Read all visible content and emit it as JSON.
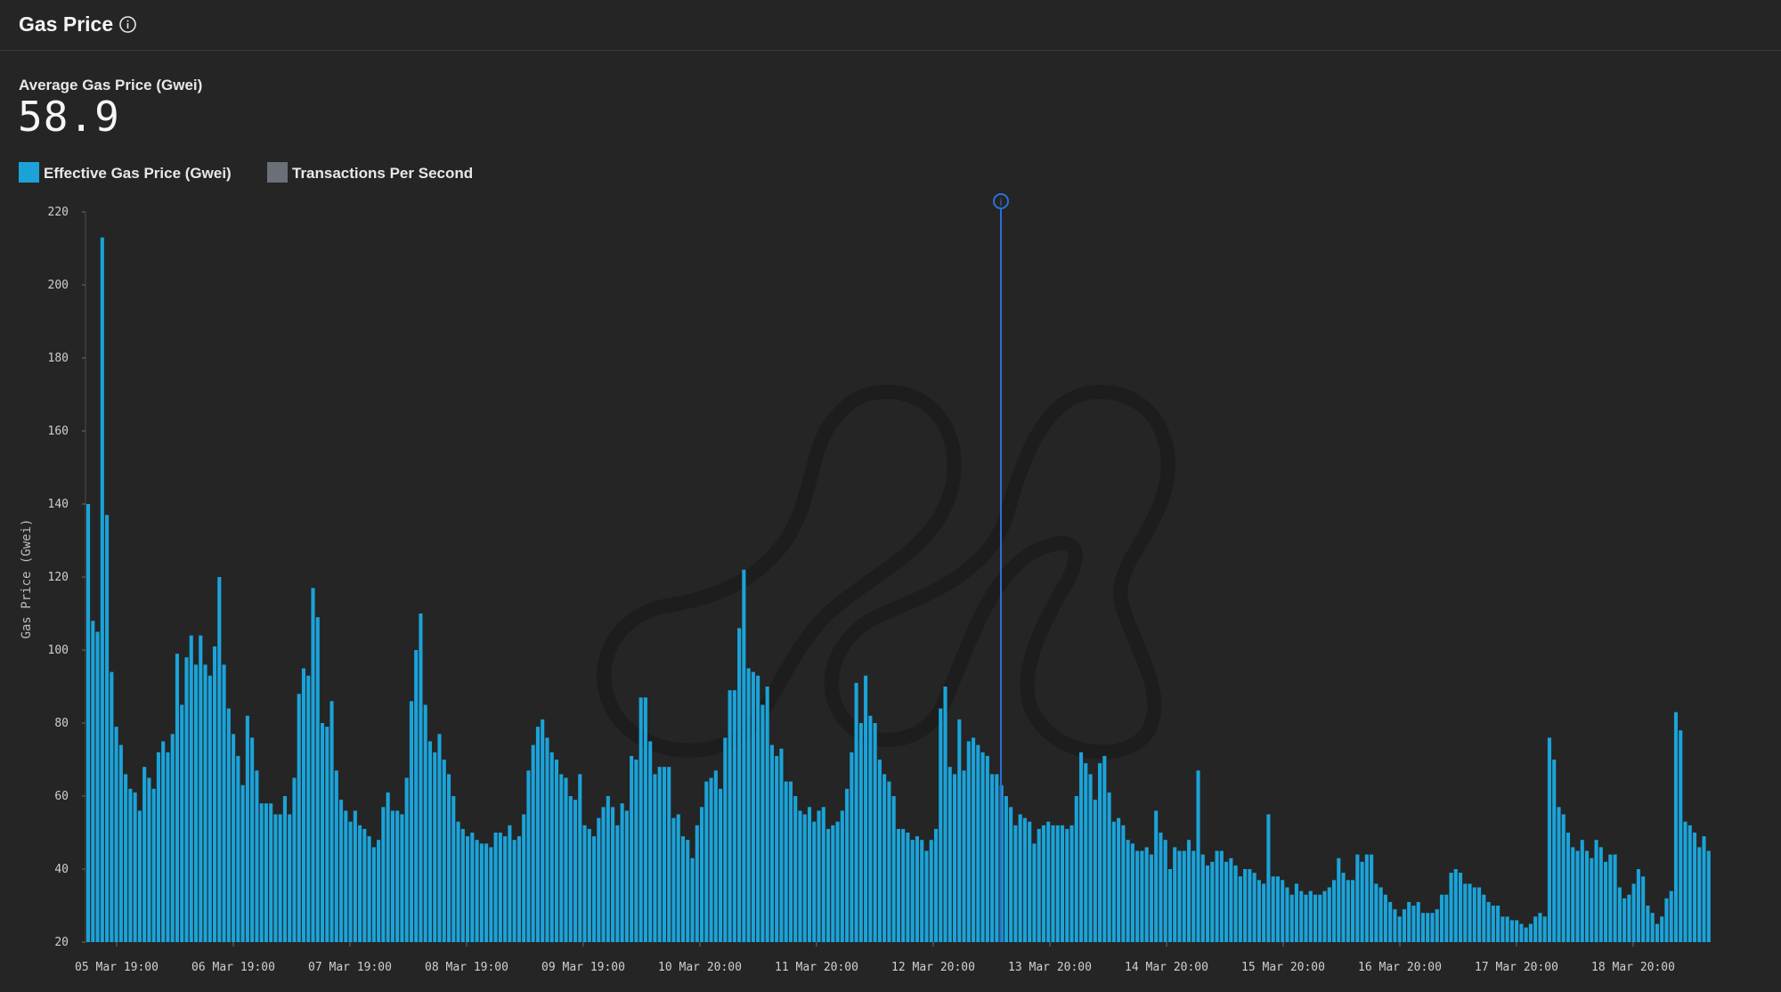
{
  "header": {
    "title": "Gas Price",
    "info_icon": "info-icon"
  },
  "metric": {
    "label": "Average Gas Price (Gwei)",
    "value": "58.9"
  },
  "legend": [
    {
      "label": "Effective Gas Price (Gwei)",
      "color": "#1ba3d9"
    },
    {
      "label": "Transactions Per Second",
      "color": "#6b6f78"
    }
  ],
  "colors": {
    "background": "#252525",
    "bar": "#1ba3d9",
    "marker": "#2b6fd6",
    "watermark": "#1e1e1e"
  },
  "chart_data": {
    "type": "bar",
    "title": "",
    "xlabel": "",
    "ylabel": "Gas Price (Gwei)",
    "ylim": [
      20,
      220
    ],
    "yticks": [
      20,
      40,
      60,
      80,
      100,
      120,
      140,
      160,
      180,
      200,
      220
    ],
    "xtick_labels": [
      "05 Mar 19:00",
      "06 Mar 19:00",
      "07 Mar 19:00",
      "08 Mar 19:00",
      "09 Mar 19:00",
      "10 Mar 20:00",
      "11 Mar 20:00",
      "12 Mar 20:00",
      "13 Mar 20:00",
      "14 Mar 20:00",
      "15 Mar 20:00",
      "16 Mar 20:00",
      "17 Mar 20:00",
      "18 Mar 20:00"
    ],
    "series": [
      {
        "name": "Effective Gas Price (Gwei)",
        "values": [
          140,
          108,
          105,
          213,
          137,
          94,
          79,
          74,
          66,
          62,
          61,
          56,
          68,
          65,
          62,
          72,
          75,
          72,
          77,
          99,
          85,
          98,
          104,
          96,
          104,
          96,
          93,
          101,
          120,
          96,
          84,
          77,
          71,
          63,
          82,
          76,
          67,
          58,
          58,
          58,
          55,
          55,
          60,
          55,
          65,
          88,
          95,
          93,
          117,
          109,
          80,
          79,
          86,
          67,
          59,
          56,
          53,
          56,
          52,
          51,
          49,
          46,
          48,
          57,
          61,
          56,
          56,
          55,
          65,
          86,
          100,
          110,
          85,
          75,
          72,
          77,
          70,
          66,
          60,
          53,
          51,
          49,
          50,
          48,
          47,
          47,
          46,
          50,
          50,
          49,
          52,
          48,
          49,
          55,
          67,
          74,
          79,
          81,
          76,
          72,
          70,
          66,
          65,
          60,
          59,
          66,
          52,
          51,
          49,
          54,
          57,
          60,
          57,
          52,
          58,
          56,
          71,
          70,
          87,
          87,
          75,
          66,
          68,
          68,
          68,
          54,
          55,
          49,
          48,
          43,
          52,
          57,
          64,
          65,
          67,
          62,
          76,
          89,
          89,
          106,
          122,
          95,
          94,
          93,
          85,
          90,
          74,
          71,
          73,
          64,
          64,
          60,
          56,
          55,
          57,
          53,
          56,
          57,
          51,
          52,
          53,
          56,
          62,
          72,
          91,
          80,
          93,
          82,
          80,
          70,
          66,
          64,
          60,
          51,
          51,
          50,
          48,
          49,
          48,
          45,
          48,
          51,
          84,
          90,
          68,
          66,
          81,
          67,
          75,
          76,
          74,
          72,
          71,
          66,
          66,
          63,
          60,
          57,
          52,
          55,
          54,
          53,
          47,
          51,
          52,
          53,
          52,
          52,
          52,
          51,
          52,
          60,
          72,
          69,
          66,
          59,
          69,
          71,
          61,
          53,
          54,
          52,
          48,
          47,
          45,
          45,
          46,
          44,
          56,
          50,
          48,
          40,
          46,
          45,
          45,
          48,
          45,
          67,
          44,
          41,
          42,
          45,
          45,
          42,
          43,
          41,
          38,
          40,
          40,
          39,
          37,
          36,
          55,
          38,
          38,
          37,
          35,
          33,
          36,
          34,
          33,
          34,
          33,
          33,
          34,
          35,
          37,
          43,
          39,
          37,
          37,
          44,
          42,
          44,
          44,
          36,
          35,
          33,
          31,
          29,
          27,
          29,
          31,
          30,
          31,
          28,
          28,
          28,
          29,
          33,
          33,
          39,
          40,
          39,
          36,
          36,
          35,
          35,
          33,
          31,
          30,
          30,
          27,
          27,
          26,
          26,
          25,
          24,
          25,
          27,
          28,
          27,
          76,
          70,
          57,
          55,
          50,
          46,
          45,
          48,
          45,
          43,
          48,
          46,
          42,
          44,
          44,
          35,
          32,
          33,
          36,
          40,
          38,
          30,
          28,
          25,
          27,
          32,
          34,
          83,
          78,
          53,
          52,
          50,
          46,
          49,
          45
        ]
      }
    ],
    "annotation_label": "i",
    "annotation_position_note": "vertical marker line at 13 Mar (approx bar index 192)",
    "grid": false,
    "legend_position": "top-left"
  }
}
